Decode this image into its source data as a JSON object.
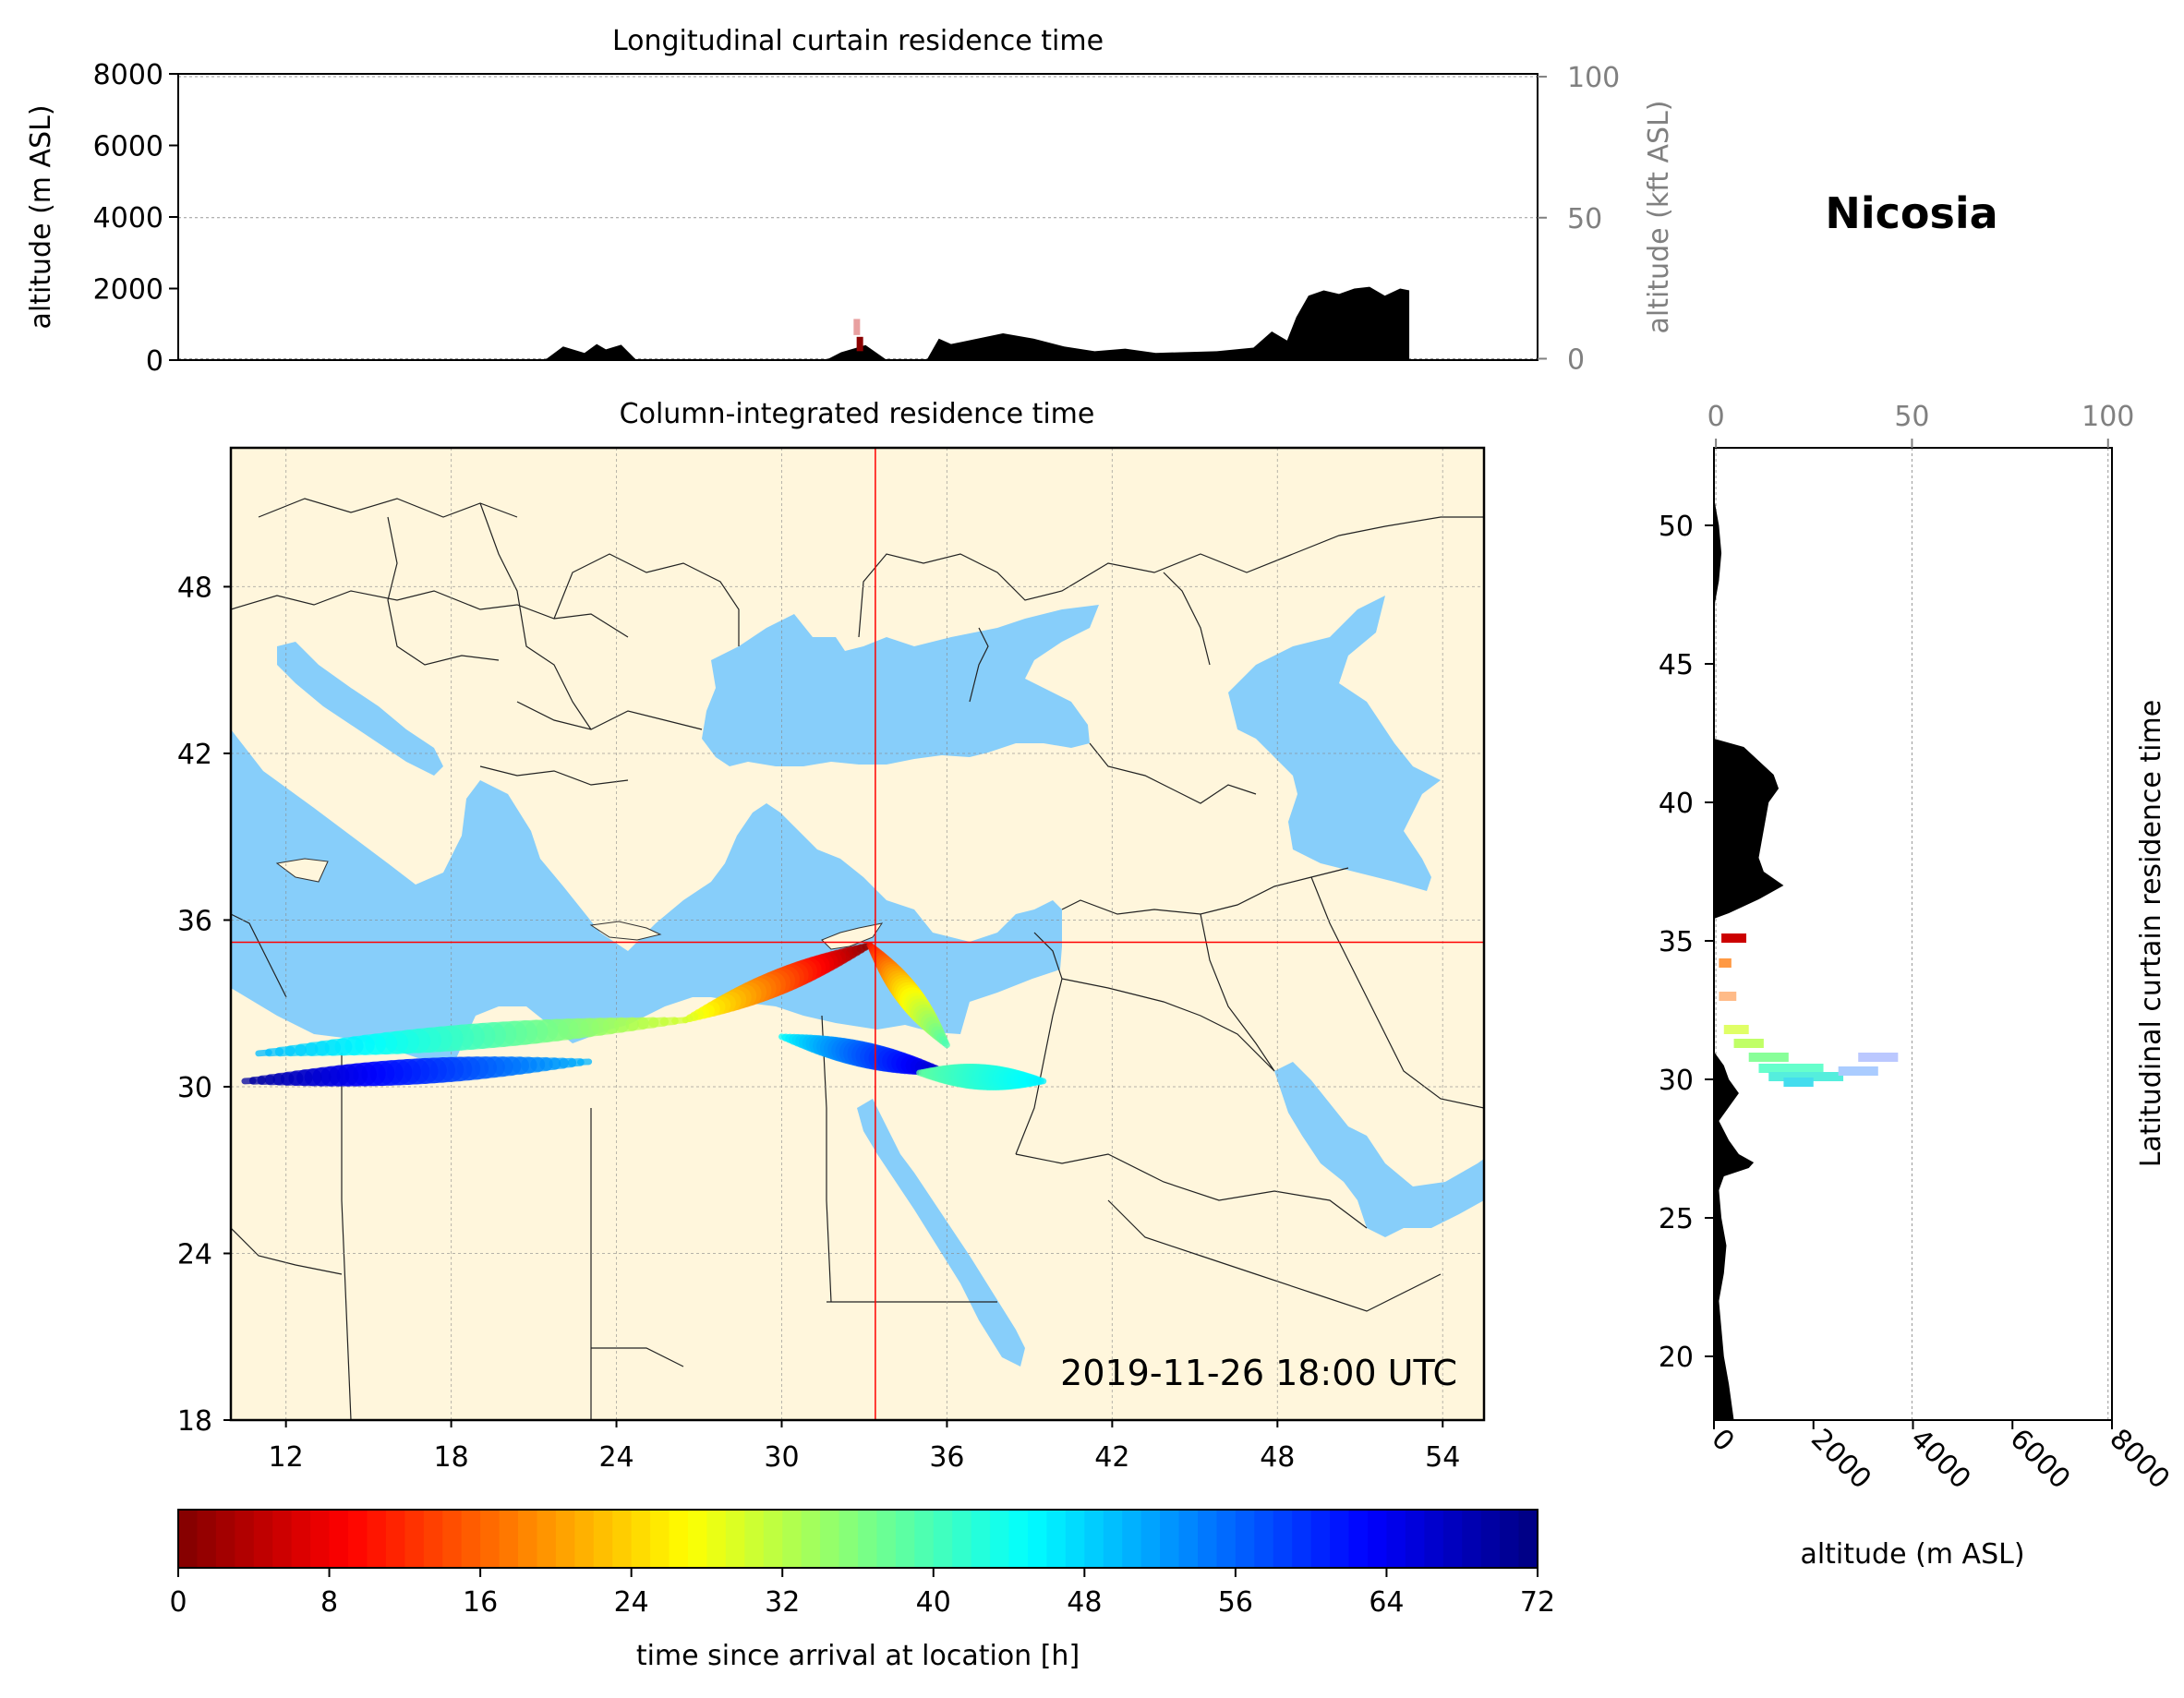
{
  "station": "Nicosia",
  "chart_data": [
    {
      "type": "area",
      "title": "Longitudinal curtain residence time",
      "ylabel": "altitude (m ASL)",
      "y2label": "altitude (kft ASL)",
      "ylim": [
        0,
        8000
      ],
      "y2lim": [
        -0.5,
        101
      ],
      "yticks": [
        0,
        2000,
        4000,
        6000,
        8000
      ],
      "y2ticks": [
        0,
        50,
        100
      ],
      "xlim": [
        11,
        55.5
      ],
      "grid": true,
      "terrain_fill": "#000000",
      "x": [
        23,
        23.6,
        24.3,
        24.7,
        25,
        25.5,
        26,
        32.2,
        32.7,
        33.5,
        34.2,
        35.5,
        35.9,
        36.3,
        36.6,
        38,
        39,
        40,
        41,
        42,
        43,
        45,
        46.2,
        46.8,
        47.3,
        47.6,
        48,
        48.5,
        49,
        49.5,
        50,
        50.5,
        51,
        51.3
      ],
      "terrain": [
        0,
        380,
        200,
        450,
        300,
        430,
        0,
        0,
        220,
        420,
        0,
        0,
        600,
        450,
        500,
        750,
        600,
        380,
        250,
        320,
        200,
        250,
        350,
        800,
        550,
        1200,
        1800,
        1950,
        1850,
        2000,
        2050,
        1800,
        2000,
        1950
      ],
      "plume": [
        {
          "lon": 33.2,
          "alt_bottom": 700,
          "alt_top": 1150,
          "color": "#e8a0a0"
        },
        {
          "lon": 33.3,
          "alt_bottom": 250,
          "alt_top": 650,
          "color": "#8b0000"
        }
      ]
    },
    {
      "type": "heatmap",
      "title": "Column-integrated residence time",
      "xlim": [
        10,
        55.5
      ],
      "ylim": [
        18,
        53
      ],
      "xticks": [
        12,
        18,
        24,
        30,
        36,
        42,
        48,
        54
      ],
      "yticks": [
        18,
        24,
        30,
        36,
        42,
        48
      ],
      "grid": true,
      "land_color": "#fff6dc",
      "sea_color": "#87cefa",
      "crosshair": {
        "lon": 33.4,
        "lat": 35.2,
        "color": "#ff0000"
      },
      "timestamp": "2019-11-26 18:00 UTC",
      "plume_color_scale": "time since arrival at location [h]",
      "plume_segments": [
        {
          "from": [
            33.2,
            35.1
          ],
          "to": [
            26.5,
            32.4
          ],
          "start_hours": 0,
          "end_hours": 30
        },
        {
          "from": [
            26.5,
            32.4
          ],
          "to": [
            11,
            31.2
          ],
          "start_hours": 30,
          "end_hours": 50
        },
        {
          "from": [
            23,
            30.9
          ],
          "to": [
            10.5,
            30.2
          ],
          "start_hours": 50,
          "end_hours": 70
        },
        {
          "from": [
            33.2,
            35.1
          ],
          "to": [
            36,
            31.5
          ],
          "start_hours": 10,
          "end_hours": 40
        },
        {
          "from": [
            30,
            31.8
          ],
          "to": [
            36,
            30.5
          ],
          "start_hours": 45,
          "end_hours": 68
        },
        {
          "from": [
            35,
            30.5
          ],
          "to": [
            39.5,
            30.2
          ],
          "start_hours": 38,
          "end_hours": 46
        }
      ]
    },
    {
      "type": "area",
      "title": "Latitudinal curtain residence time",
      "xlabel": "altitude (m ASL)",
      "xlim": [
        0,
        8000
      ],
      "x2lim": [
        -0.5,
        101
      ],
      "xticks": [
        0,
        2000,
        4000,
        6000,
        8000
      ],
      "x2ticks": [
        0,
        50,
        100
      ],
      "ylim": [
        17.7,
        52.8
      ],
      "yticks": [
        20,
        25,
        30,
        35,
        40,
        45,
        50
      ],
      "grid": true,
      "terrain_fill": "#000000",
      "lat": [
        17.7,
        19,
        20,
        22,
        23,
        24,
        25,
        26,
        26.5,
        26.8,
        27,
        27.3,
        27.8,
        28.5,
        29,
        29.5,
        30,
        30.5,
        31,
        35.8,
        36,
        36.5,
        37,
        37.5,
        38,
        39,
        40,
        40.5,
        41,
        41.5,
        42,
        42.3,
        43,
        45,
        47,
        48,
        49,
        50,
        51,
        52.8
      ],
      "terrain": [
        400,
        300,
        200,
        100,
        200,
        250,
        150,
        100,
        200,
        700,
        800,
        500,
        300,
        100,
        300,
        500,
        300,
        200,
        0,
        0,
        300,
        900,
        1400,
        1000,
        900,
        1000,
        1100,
        1300,
        1200,
        900,
        600,
        0,
        0,
        0,
        0,
        100,
        150,
        100,
        0,
        0
      ],
      "plume": [
        {
          "lat": 35.1,
          "alt_from": 150,
          "alt_to": 650,
          "color": "#cc0000"
        },
        {
          "lat": 34.2,
          "alt_from": 100,
          "alt_to": 350,
          "color": "#ff9944"
        },
        {
          "lat": 33.0,
          "alt_from": 100,
          "alt_to": 450,
          "color": "#ffbb88"
        },
        {
          "lat": 31.8,
          "alt_from": 200,
          "alt_to": 700,
          "color": "#e0ff66"
        },
        {
          "lat": 31.3,
          "alt_from": 400,
          "alt_to": 1000,
          "color": "#c0ff66"
        },
        {
          "lat": 30.8,
          "alt_from": 700,
          "alt_to": 1500,
          "color": "#88ff99"
        },
        {
          "lat": 30.4,
          "alt_from": 900,
          "alt_to": 2200,
          "color": "#66ffcc"
        },
        {
          "lat": 30.1,
          "alt_from": 1100,
          "alt_to": 2600,
          "color": "#55eedd"
        },
        {
          "lat": 29.9,
          "alt_from": 1400,
          "alt_to": 2000,
          "color": "#44ddee"
        },
        {
          "lat": 30.3,
          "alt_from": 2500,
          "alt_to": 3300,
          "color": "#aaccff"
        },
        {
          "lat": 30.8,
          "alt_from": 2900,
          "alt_to": 3700,
          "color": "#bbc8ff"
        }
      ]
    },
    {
      "type": "colorbar",
      "label": "time since arrival at location [h]",
      "range": [
        0,
        72
      ],
      "ticks": [
        0,
        8,
        16,
        24,
        32,
        40,
        48,
        56,
        64,
        72
      ],
      "colormap": "jet_r"
    }
  ]
}
